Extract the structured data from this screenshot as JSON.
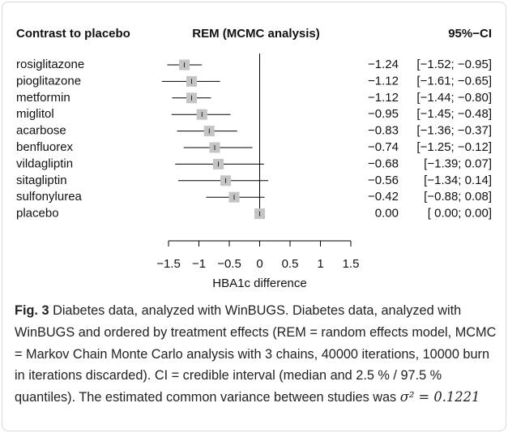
{
  "chart_data": {
    "type": "forest",
    "headers": [
      "Contrast to placebo",
      "REM (MCMC analysis)",
      "95%−CI"
    ],
    "categories": [
      "rosiglitazone",
      "pioglitazone",
      "metformin",
      "miglitol",
      "acarbose",
      "benfluorex",
      "vildagliptin",
      "sitagliptin",
      "sulfonylurea",
      "placebo"
    ],
    "values": [
      -1.24,
      -1.12,
      -1.12,
      -0.95,
      -0.83,
      -0.74,
      -0.68,
      -0.56,
      -0.42,
      0.0
    ],
    "value_labels": [
      "−1.24",
      "−1.12",
      "−1.12",
      "−0.95",
      "−0.83",
      "−0.74",
      "−0.68",
      "−0.56",
      "−0.42",
      "0.00"
    ],
    "lower": [
      -1.52,
      -1.61,
      -1.44,
      -1.45,
      -1.36,
      -1.25,
      -1.39,
      -1.34,
      -0.88,
      0.0
    ],
    "upper": [
      -0.95,
      -0.65,
      -0.8,
      -0.48,
      -0.37,
      -0.12,
      0.07,
      0.14,
      0.08,
      0.0
    ],
    "ci_labels": [
      "[−1.52; −0.95]",
      "[−1.61; −0.65]",
      "[−1.44; −0.80]",
      "[−1.45; −0.48]",
      "[−1.36; −0.37]",
      "[−1.25; −0.12]",
      "[−1.39; 0.07]",
      "[−1.34; 0.14]",
      "[−0.88; 0.08]",
      "[ 0.00; 0.00]"
    ],
    "color": "#c4c4c4",
    "reference_line": 0,
    "xlim": [
      -1.5,
      1.5
    ],
    "xticks": [
      {
        "value": -1.5,
        "label": "−1.5"
      },
      {
        "value": -1,
        "label": "−1"
      },
      {
        "value": -0.5,
        "label": "−0.5"
      },
      0,
      0.5,
      1,
      1.5
    ],
    "xlabel": "HBA1c difference"
  },
  "caption": {
    "label": "Fig. 3",
    "text": "Diabetes data, analyzed with WinBUGS. Diabetes data, analyzed with WinBUGS and ordered by treatment effects (REM = random effects model, MCMC = Markov Chain Monte Carlo analysis with 3 chains, 40000 iterations, 10000 burn in iterations discarded). CI = credible interval (median and 2.5 % / 97.5 % quantiles). The estimated common variance between studies was",
    "formula": "σ² = 0.1221"
  }
}
